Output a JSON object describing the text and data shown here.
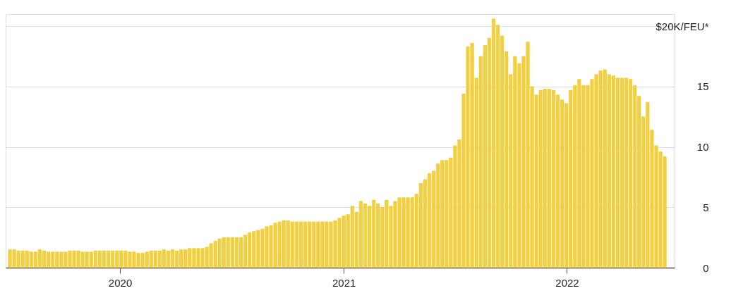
{
  "chart_data": {
    "type": "bar",
    "color": "#f3d03e",
    "x": [
      "2019-07-05",
      "2019-07-12",
      "2019-07-19",
      "2019-07-26",
      "2019-08-02",
      "2019-08-09",
      "2019-08-16",
      "2019-08-23",
      "2019-08-30",
      "2019-09-06",
      "2019-09-13",
      "2019-09-20",
      "2019-09-27",
      "2019-10-04",
      "2019-10-11",
      "2019-10-18",
      "2019-10-25",
      "2019-11-01",
      "2019-11-08",
      "2019-11-15",
      "2019-11-22",
      "2019-11-29",
      "2019-12-06",
      "2019-12-13",
      "2019-12-20",
      "2019-12-27",
      "2020-01-03",
      "2020-01-10",
      "2020-01-17",
      "2020-01-24",
      "2020-01-31",
      "2020-02-07",
      "2020-02-14",
      "2020-02-21",
      "2020-02-28",
      "2020-03-06",
      "2020-03-13",
      "2020-03-20",
      "2020-03-27",
      "2020-04-03",
      "2020-04-10",
      "2020-04-17",
      "2020-04-24",
      "2020-05-01",
      "2020-05-08",
      "2020-05-15",
      "2020-05-22",
      "2020-05-29",
      "2020-06-05",
      "2020-06-12",
      "2020-06-19",
      "2020-06-26",
      "2020-07-03",
      "2020-07-10",
      "2020-07-17",
      "2020-07-24",
      "2020-07-31",
      "2020-08-07",
      "2020-08-14",
      "2020-08-21",
      "2020-08-28",
      "2020-09-04",
      "2020-09-11",
      "2020-09-18",
      "2020-09-25",
      "2020-10-02",
      "2020-10-09",
      "2020-10-16",
      "2020-10-23",
      "2020-10-30",
      "2020-11-06",
      "2020-11-13",
      "2020-11-20",
      "2020-11-27",
      "2020-12-04",
      "2020-12-11",
      "2020-12-18",
      "2020-12-25",
      "2021-01-01",
      "2021-01-08",
      "2021-01-15",
      "2021-01-22",
      "2021-01-29",
      "2021-02-05",
      "2021-02-12",
      "2021-02-19",
      "2021-02-26",
      "2021-03-05",
      "2021-03-12",
      "2021-03-19",
      "2021-03-26",
      "2021-04-02",
      "2021-04-09",
      "2021-04-16",
      "2021-04-23",
      "2021-04-30",
      "2021-05-07",
      "2021-05-14",
      "2021-05-21",
      "2021-05-28",
      "2021-06-04",
      "2021-06-11",
      "2021-06-18",
      "2021-06-25",
      "2021-07-02",
      "2021-07-09",
      "2021-07-16",
      "2021-07-23",
      "2021-07-30",
      "2021-08-06",
      "2021-08-13",
      "2021-08-20",
      "2021-08-27",
      "2021-09-03",
      "2021-09-10",
      "2021-09-17",
      "2021-09-24",
      "2021-10-01",
      "2021-10-08",
      "2021-10-15",
      "2021-10-22",
      "2021-10-29",
      "2021-11-05",
      "2021-11-12",
      "2021-11-19",
      "2021-11-26",
      "2021-12-03",
      "2021-12-10",
      "2021-12-17",
      "2021-12-24",
      "2021-12-31",
      "2022-01-07",
      "2022-01-14",
      "2022-01-21",
      "2022-01-28",
      "2022-02-04",
      "2022-02-11",
      "2022-02-18",
      "2022-02-25",
      "2022-03-04",
      "2022-03-11",
      "2022-03-18",
      "2022-03-25",
      "2022-04-01",
      "2022-04-08",
      "2022-04-15",
      "2022-04-22",
      "2022-04-29",
      "2022-05-06",
      "2022-05-13",
      "2022-05-20",
      "2022-05-27",
      "2022-06-03",
      "2022-06-10"
    ],
    "values": [
      1.5,
      1.5,
      1.4,
      1.4,
      1.4,
      1.3,
      1.3,
      1.5,
      1.4,
      1.3,
      1.3,
      1.3,
      1.3,
      1.3,
      1.4,
      1.4,
      1.4,
      1.3,
      1.3,
      1.3,
      1.4,
      1.4,
      1.4,
      1.4,
      1.4,
      1.4,
      1.4,
      1.4,
      1.3,
      1.3,
      1.2,
      1.2,
      1.3,
      1.4,
      1.4,
      1.4,
      1.5,
      1.4,
      1.5,
      1.4,
      1.5,
      1.5,
      1.6,
      1.6,
      1.6,
      1.6,
      1.7,
      2.0,
      2.2,
      2.4,
      2.5,
      2.5,
      2.5,
      2.5,
      2.5,
      2.7,
      2.9,
      3.0,
      3.1,
      3.2,
      3.4,
      3.5,
      3.7,
      3.8,
      3.9,
      3.9,
      3.8,
      3.8,
      3.8,
      3.8,
      3.8,
      3.8,
      3.8,
      3.8,
      3.8,
      3.8,
      3.9,
      4.1,
      4.3,
      4.4,
      5.1,
      4.6,
      5.5,
      5.3,
      5.1,
      5.6,
      5.3,
      5.0,
      5.6,
      5.1,
      5.5,
      5.8,
      5.8,
      5.8,
      5.8,
      6.1,
      7.0,
      7.3,
      7.8,
      8.0,
      8.6,
      8.9,
      8.9,
      9.1,
      10.1,
      10.6,
      14.4,
      18.3,
      18.6,
      15.7,
      17.5,
      18.4,
      19.0,
      20.6,
      20.1,
      19.2,
      17.9,
      16.0,
      17.5,
      16.9,
      17.5,
      18.7,
      15.0,
      14.3,
      14.7,
      14.8,
      14.8,
      14.7,
      14.3,
      13.9,
      13.6,
      14.7,
      15.1,
      15.6,
      15.1,
      15.1,
      15.6,
      16.0,
      16.3,
      16.4,
      16.0,
      15.9,
      15.7,
      15.7,
      15.7,
      15.6,
      15.1,
      14.2,
      12.5,
      13.7,
      11.4,
      10.1,
      9.6,
      9.2
    ],
    "xlim": [
      "2019-06-28",
      "2022-06-26"
    ],
    "xticks": [
      "2020",
      "2021",
      "2022"
    ],
    "ylim": [
      0,
      21
    ],
    "yticks": [
      0,
      5,
      10,
      15,
      {
        "value": 20,
        "label": "$20K/FEU*"
      }
    ],
    "grid": "y"
  }
}
